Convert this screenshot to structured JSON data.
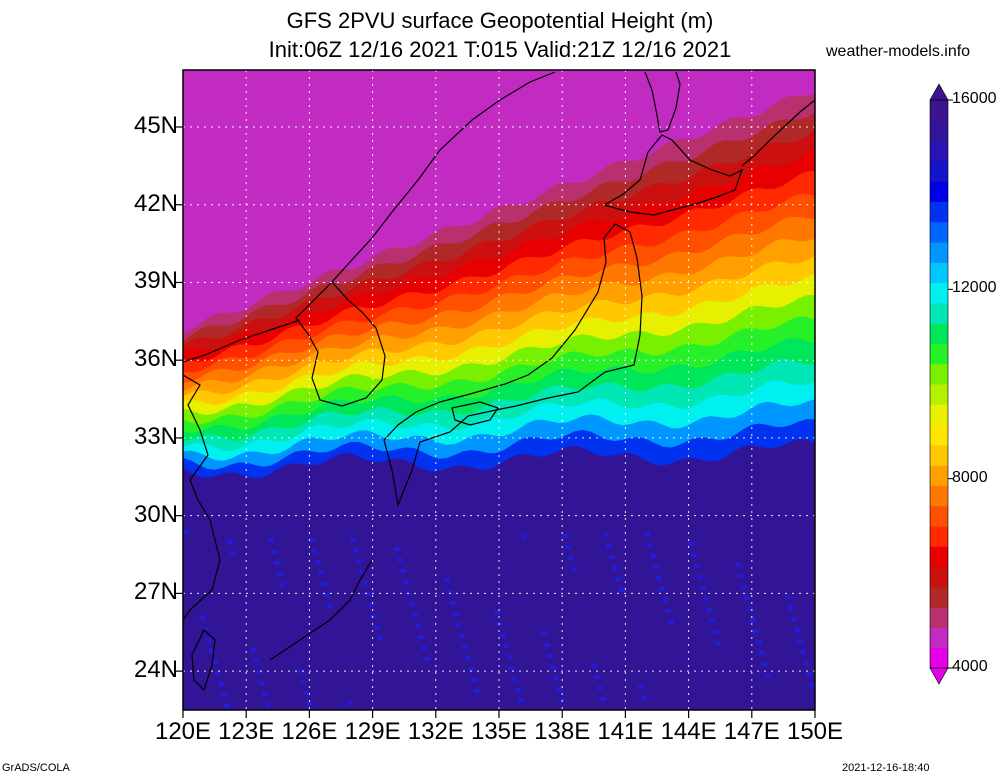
{
  "title_line1": "GFS 2PVU surface Geopotential Height (m)",
  "title_line2": "Init:06Z 12/16 2021 T:015 Valid:21Z 12/16 2021",
  "site": "weather-models.info",
  "footer_left": "GrADS/COLA",
  "footer_right": "2021-12-16-18:40",
  "map": {
    "lon_range": [
      120,
      150
    ],
    "lat_range": [
      22.5,
      47.2
    ],
    "lat_ticks": [
      {
        "value": 45,
        "label": "45N"
      },
      {
        "value": 42,
        "label": "42N"
      },
      {
        "value": 39,
        "label": "39N"
      },
      {
        "value": 36,
        "label": "36N"
      },
      {
        "value": 33,
        "label": "33N"
      },
      {
        "value": 30,
        "label": "30N"
      },
      {
        "value": 27,
        "label": "27N"
      },
      {
        "value": 24,
        "label": "24N"
      }
    ],
    "lon_ticks": [
      {
        "value": 120,
        "label": "120E"
      },
      {
        "value": 123,
        "label": "123E"
      },
      {
        "value": 126,
        "label": "126E"
      },
      {
        "value": 129,
        "label": "129E"
      },
      {
        "value": 132,
        "label": "132E"
      },
      {
        "value": 135,
        "label": "135E"
      },
      {
        "value": 138,
        "label": "138E"
      },
      {
        "value": 141,
        "label": "141E"
      },
      {
        "value": 144,
        "label": "144E"
      },
      {
        "value": 147,
        "label": "147E"
      },
      {
        "value": 150,
        "label": "150E"
      }
    ]
  },
  "colorbar": {
    "labels": [
      {
        "value": 16000,
        "label": "16000"
      },
      {
        "value": 12000,
        "label": "12000"
      },
      {
        "value": 8000,
        "label": "8000"
      },
      {
        "value": 4000,
        "label": "4000"
      }
    ],
    "colors": [
      "#e600e6",
      "#c22bc2",
      "#b8306e",
      "#b02828",
      "#cc1010",
      "#e80000",
      "#ff2a00",
      "#ff5000",
      "#ff7800",
      "#ffa000",
      "#ffc800",
      "#ffe600",
      "#e6f000",
      "#b4f000",
      "#78f000",
      "#28f028",
      "#00e65a",
      "#00e6b4",
      "#00f0f0",
      "#00c8ff",
      "#0096ff",
      "#0064ff",
      "#0032f0",
      "#0000e6",
      "#1414c8",
      "#2814b4",
      "#321496",
      "#3c1490"
    ]
  },
  "field_bands": [
    {
      "level": 4000,
      "color": "#c22bc2"
    },
    {
      "level": 5500,
      "color": "#b8306e"
    },
    {
      "level": 6500,
      "color": "#b02828"
    },
    {
      "level": 7000,
      "color": "#cc1010"
    },
    {
      "level": 7500,
      "color": "#e80000"
    },
    {
      "level": 8000,
      "color": "#ff2a00"
    },
    {
      "level": 8500,
      "color": "#ff5000"
    },
    {
      "level": 9000,
      "color": "#ff7800"
    },
    {
      "level": 9500,
      "color": "#ffa000"
    },
    {
      "level": 10000,
      "color": "#ffc800"
    },
    {
      "level": 10500,
      "color": "#e6f000"
    },
    {
      "level": 11000,
      "color": "#78f000"
    },
    {
      "level": 11500,
      "color": "#28f028"
    },
    {
      "level": 12000,
      "color": "#00e65a"
    },
    {
      "level": 12500,
      "color": "#00e6b4"
    },
    {
      "level": 13000,
      "color": "#00f0f0"
    },
    {
      "level": 14000,
      "color": "#0096ff"
    },
    {
      "level": 15000,
      "color": "#0032f0"
    },
    {
      "level": 16000,
      "color": "#321496"
    }
  ]
}
